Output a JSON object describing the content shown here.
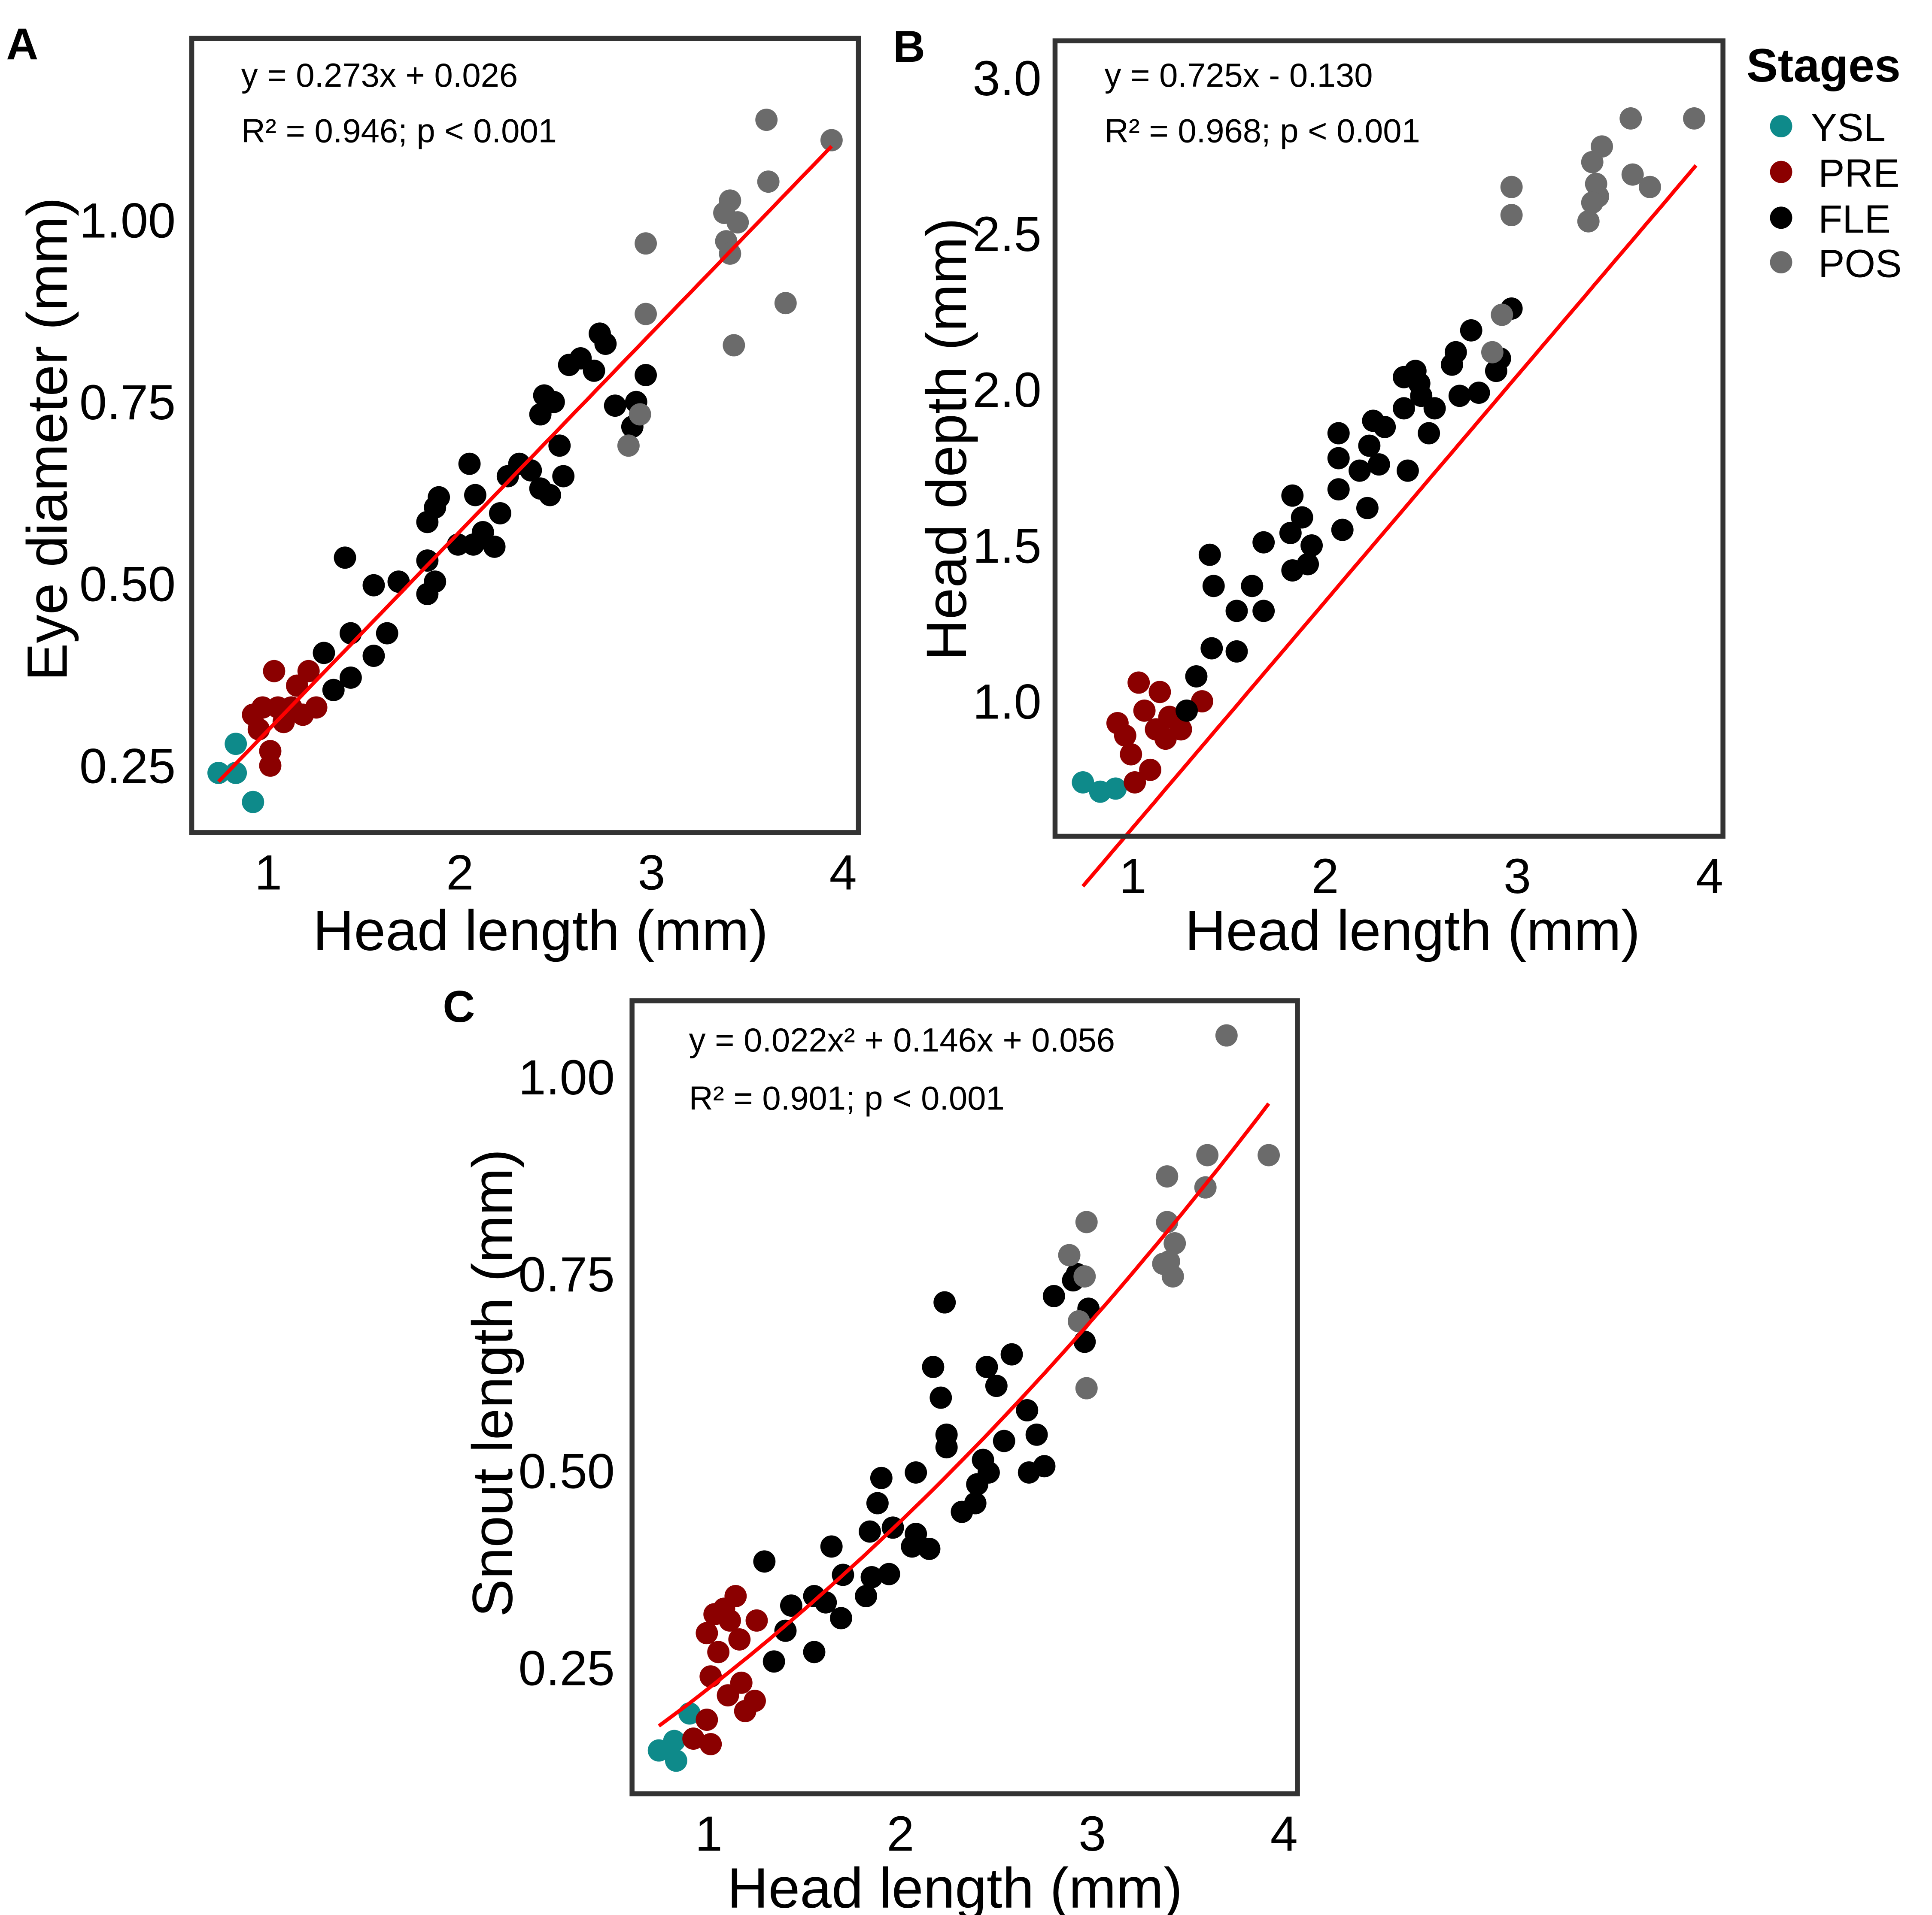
{
  "colors": {
    "YSL": "#0e8a8a",
    "PRE": "#8b0000",
    "FLE": "#000000",
    "POS": "#6b6b6b",
    "fit": "#ff0000",
    "frame": "#333333"
  },
  "legend": {
    "title": "Stages",
    "items": [
      "YSL",
      "PRE",
      "FLE",
      "POS"
    ],
    "placement": "right"
  },
  "chart_data": [
    {
      "panel": "A",
      "type": "scatter",
      "xlabel": "Head length (mm)",
      "ylabel": "Eye diameter (mm)",
      "xlim": [
        0.6,
        4.08
      ],
      "ylim": [
        0.158,
        1.25
      ],
      "xticks": [
        1,
        2,
        3,
        4
      ],
      "xtick_labels": [
        "1",
        "2",
        "3",
        "4"
      ],
      "yticks": [
        0.25,
        0.5,
        0.75,
        1.0
      ],
      "ytick_labels": [
        "0.25",
        "0.50",
        "0.75",
        "1.00"
      ],
      "grid": false,
      "annotations": [
        "y = 0.273x + 0.026",
        "R² = 0.946; p < 0.001"
      ],
      "fit": {
        "type": "linear",
        "coef": [
          0.026,
          0.273
        ],
        "x_range": [
          0.74,
          3.94
        ]
      },
      "series": [
        {
          "name": "YSL",
          "points": [
            [
              0.74,
              0.24
            ],
            [
              0.83,
              0.24
            ],
            [
              0.83,
              0.28
            ],
            [
              0.92,
              0.2
            ]
          ]
        },
        {
          "name": "PRE",
          "points": [
            [
              1.03,
              0.38
            ],
            [
              1.01,
              0.25
            ],
            [
              1.01,
              0.27
            ],
            [
              0.95,
              0.3
            ],
            [
              0.92,
              0.32
            ],
            [
              0.97,
              0.33
            ],
            [
              1.05,
              0.33
            ],
            [
              1.12,
              0.33
            ],
            [
              1.15,
              0.36
            ],
            [
              1.21,
              0.38
            ],
            [
              1.25,
              0.33
            ],
            [
              1.18,
              0.32
            ],
            [
              1.08,
              0.31
            ]
          ]
        },
        {
          "name": "FLE",
          "points": [
            [
              1.29,
              0.405
            ],
            [
              1.34,
              0.354
            ],
            [
              1.43,
              0.371
            ],
            [
              1.43,
              0.432
            ],
            [
              1.4,
              0.536
            ],
            [
              1.55,
              0.401
            ],
            [
              1.62,
              0.432
            ],
            [
              1.55,
              0.498
            ],
            [
              1.68,
              0.503
            ],
            [
              1.83,
              0.486
            ],
            [
              1.87,
              0.503
            ],
            [
              1.83,
              0.532
            ],
            [
              1.89,
              0.619
            ],
            [
              1.87,
              0.605
            ],
            [
              1.83,
              0.585
            ],
            [
              2.05,
              0.665
            ],
            [
              2.08,
              0.622
            ],
            [
              2.07,
              0.554
            ],
            [
              2.18,
              0.551
            ],
            [
              2.21,
              0.597
            ],
            [
              2.12,
              0.571
            ],
            [
              1.99,
              0.554
            ],
            [
              2.25,
              0.648
            ],
            [
              2.31,
              0.665
            ],
            [
              2.37,
              0.656
            ],
            [
              2.42,
              0.733
            ],
            [
              2.44,
              0.759
            ],
            [
              2.49,
              0.75
            ],
            [
              2.52,
              0.69
            ],
            [
              2.54,
              0.648
            ],
            [
              2.47,
              0.622
            ],
            [
              2.42,
              0.631
            ],
            [
              2.57,
              0.801
            ],
            [
              2.63,
              0.81
            ],
            [
              2.7,
              0.793
            ],
            [
              2.73,
              0.844
            ],
            [
              2.76,
              0.83
            ],
            [
              2.81,
              0.745
            ],
            [
              2.92,
              0.75
            ],
            [
              2.97,
              0.787
            ],
            [
              2.9,
              0.716
            ]
          ]
        },
        {
          "name": "POS",
          "points": [
            [
              3.6,
              1.138
            ],
            [
              3.94,
              1.11
            ],
            [
              3.61,
              1.053
            ],
            [
              3.41,
              1.027
            ],
            [
              3.38,
              1.01
            ],
            [
              3.45,
              0.997
            ],
            [
              3.39,
              0.971
            ],
            [
              3.41,
              0.954
            ],
            [
              2.97,
              0.968
            ],
            [
              2.97,
              0.871
            ],
            [
              3.7,
              0.886
            ],
            [
              3.43,
              0.828
            ],
            [
              2.94,
              0.733
            ],
            [
              2.88,
              0.69
            ]
          ]
        }
      ]
    },
    {
      "panel": "B",
      "type": "scatter",
      "xlabel": "Head length (mm)",
      "ylabel": "Head depth (mm)",
      "xlim": [
        0.595,
        4.07
      ],
      "ylim": [
        0.567,
        3.119
      ],
      "xticks": [
        1,
        2,
        3,
        4
      ],
      "xtick_labels": [
        "1",
        "2",
        "3",
        "4"
      ],
      "yticks": [
        1.0,
        1.5,
        2.0,
        2.5,
        3.0
      ],
      "ytick_labels": [
        "1.0",
        "1.5",
        "2.0",
        "2.5",
        "3.0"
      ],
      "grid": false,
      "annotations": [
        "y = 0.725x - 0.130",
        "R² = 0.968; p < 0.001"
      ],
      "fit": {
        "type": "linear",
        "coef": [
          -0.13,
          0.725
        ],
        "x_range": [
          0.74,
          3.93
        ]
      },
      "series": [
        {
          "name": "YSL",
          "points": [
            [
              0.74,
              0.74
            ],
            [
              0.83,
              0.71
            ],
            [
              0.91,
              0.72
            ]
          ]
        },
        {
          "name": "PRE",
          "points": [
            [
              1.03,
              1.06
            ],
            [
              0.92,
              0.93
            ],
            [
              0.96,
              0.89
            ],
            [
              1.01,
              0.74
            ],
            [
              1.09,
              0.78
            ],
            [
              1.14,
              1.03
            ],
            [
              1.19,
              0.95
            ],
            [
              1.12,
              0.91
            ],
            [
              1.06,
              0.97
            ],
            [
              1.25,
              0.91
            ],
            [
              1.36,
              1.0
            ],
            [
              0.99,
              0.83
            ],
            [
              1.17,
              0.88
            ]
          ]
        },
        {
          "name": "FLE",
          "points": [
            [
              1.28,
              0.97
            ],
            [
              1.33,
              1.08
            ],
            [
              1.4,
              1.47
            ],
            [
              1.42,
              1.37
            ],
            [
              1.41,
              1.17
            ],
            [
              1.54,
              1.16
            ],
            [
              1.54,
              1.29
            ],
            [
              1.62,
              1.37
            ],
            [
              1.68,
              1.29
            ],
            [
              1.68,
              1.51
            ],
            [
              1.83,
              1.66
            ],
            [
              1.82,
              1.54
            ],
            [
              1.88,
              1.59
            ],
            [
              1.83,
              1.42
            ],
            [
              1.91,
              1.44
            ],
            [
              1.93,
              1.5
            ],
            [
              2.07,
              1.86
            ],
            [
              2.07,
              1.78
            ],
            [
              2.07,
              1.68
            ],
            [
              2.09,
              1.55
            ],
            [
              2.18,
              1.74
            ],
            [
              2.22,
              1.62
            ],
            [
              2.23,
              1.82
            ],
            [
              2.25,
              1.9
            ],
            [
              2.28,
              1.76
            ],
            [
              2.31,
              1.88
            ],
            [
              2.41,
              1.94
            ],
            [
              2.43,
              1.74
            ],
            [
              2.47,
              2.06
            ],
            [
              2.41,
              2.04
            ],
            [
              2.5,
              1.98
            ],
            [
              2.54,
              1.86
            ],
            [
              2.57,
              1.94
            ],
            [
              2.68,
              2.12
            ],
            [
              2.7,
              1.98
            ],
            [
              2.76,
              2.19
            ],
            [
              2.8,
              1.99
            ],
            [
              2.89,
              2.06
            ],
            [
              2.91,
              2.1
            ],
            [
              2.97,
              2.26
            ],
            [
              2.49,
              2.02
            ],
            [
              2.66,
              2.08
            ]
          ]
        },
        {
          "name": "POS",
          "points": [
            [
              2.97,
              2.65
            ],
            [
              2.97,
              2.56
            ],
            [
              2.92,
              2.24
            ],
            [
              2.87,
              2.12
            ],
            [
              3.59,
              2.87
            ],
            [
              3.92,
              2.87
            ],
            [
              3.44,
              2.78
            ],
            [
              3.39,
              2.73
            ],
            [
              3.41,
              2.66
            ],
            [
              3.42,
              2.62
            ],
            [
              3.37,
              2.54
            ],
            [
              3.6,
              2.69
            ],
            [
              3.69,
              2.65
            ],
            [
              3.39,
              2.6
            ]
          ]
        }
      ]
    },
    {
      "panel": "C",
      "type": "scatter",
      "xlabel": "Head length (mm)",
      "ylabel": "Snout length (mm)",
      "xlim": [
        0.6,
        4.07
      ],
      "ylim": [
        0.09,
        1.097
      ],
      "xticks": [
        1,
        2,
        3,
        4
      ],
      "xtick_labels": [
        "1",
        "2",
        "3",
        "4"
      ],
      "yticks": [
        0.25,
        0.5,
        0.75,
        1.0
      ],
      "ytick_labels": [
        "0.25",
        "0.50",
        "0.75",
        "1.00"
      ],
      "grid": false,
      "annotations": [
        "y = 0.022x² + 0.146x + 0.056",
        "R² = 0.901; p < 0.001"
      ],
      "fit": {
        "type": "quadratic",
        "coef": [
          0.056,
          0.146,
          0.022
        ],
        "x_range": [
          0.74,
          3.92
        ]
      },
      "series": [
        {
          "name": "YSL",
          "points": [
            [
              0.74,
              0.145
            ],
            [
              0.82,
              0.157
            ],
            [
              0.83,
              0.132
            ],
            [
              0.9,
              0.192
            ]
          ]
        },
        {
          "name": "PRE",
          "points": [
            [
              0.92,
              0.16
            ],
            [
              1.01,
              0.153
            ],
            [
              0.99,
              0.184
            ],
            [
              1.01,
              0.239
            ],
            [
              1.05,
              0.27
            ],
            [
              0.99,
              0.294
            ],
            [
              1.03,
              0.318
            ],
            [
              1.08,
              0.325
            ],
            [
              1.14,
              0.341
            ],
            [
              1.16,
              0.286
            ],
            [
              1.11,
              0.31
            ],
            [
              1.25,
              0.31
            ],
            [
              1.17,
              0.231
            ],
            [
              1.24,
              0.208
            ],
            [
              1.19,
              0.195
            ],
            [
              1.1,
              0.215
            ]
          ]
        },
        {
          "name": "FLE",
          "points": [
            [
              1.29,
              0.385
            ],
            [
              1.34,
              0.258
            ],
            [
              1.4,
              0.297
            ],
            [
              1.43,
              0.329
            ],
            [
              1.55,
              0.27
            ],
            [
              1.55,
              0.341
            ],
            [
              1.61,
              0.333
            ],
            [
              1.69,
              0.313
            ],
            [
              1.64,
              0.404
            ],
            [
              1.7,
              0.368
            ],
            [
              1.82,
              0.341
            ],
            [
              1.85,
              0.365
            ],
            [
              1.84,
              0.423
            ],
            [
              1.88,
              0.459
            ],
            [
              1.9,
              0.491
            ],
            [
              1.94,
              0.369
            ],
            [
              1.96,
              0.428
            ],
            [
              2.06,
              0.404
            ],
            [
              2.08,
              0.498
            ],
            [
              2.08,
              0.42
            ],
            [
              2.15,
              0.401
            ],
            [
              2.17,
              0.632
            ],
            [
              2.21,
              0.593
            ],
            [
              2.24,
              0.546
            ],
            [
              2.23,
              0.714
            ],
            [
              2.24,
              0.53
            ],
            [
              2.32,
              0.448
            ],
            [
              2.39,
              0.459
            ],
            [
              2.4,
              0.483
            ],
            [
              2.43,
              0.514
            ],
            [
              2.45,
              0.632
            ],
            [
              2.46,
              0.498
            ],
            [
              2.5,
              0.608
            ],
            [
              2.54,
              0.538
            ],
            [
              2.58,
              0.648
            ],
            [
              2.66,
              0.577
            ],
            [
              2.67,
              0.498
            ],
            [
              2.71,
              0.546
            ],
            [
              2.75,
              0.506
            ],
            [
              2.8,
              0.722
            ],
            [
              2.92,
              0.75
            ],
            [
              2.96,
              0.664
            ],
            [
              2.98,
              0.706
            ],
            [
              2.9,
              0.742
            ]
          ]
        },
        {
          "name": "POS",
          "points": [
            [
              3.7,
              1.053
            ],
            [
              3.92,
              0.901
            ],
            [
              3.6,
              0.901
            ],
            [
              3.59,
              0.86
            ],
            [
              3.39,
              0.874
            ],
            [
              3.39,
              0.816
            ],
            [
              2.97,
              0.816
            ],
            [
              2.88,
              0.774
            ],
            [
              2.96,
              0.747
            ],
            [
              2.93,
              0.69
            ],
            [
              2.97,
              0.605
            ],
            [
              3.43,
              0.789
            ],
            [
              3.4,
              0.766
            ],
            [
              3.42,
              0.747
            ],
            [
              3.37,
              0.763
            ]
          ]
        }
      ]
    }
  ]
}
